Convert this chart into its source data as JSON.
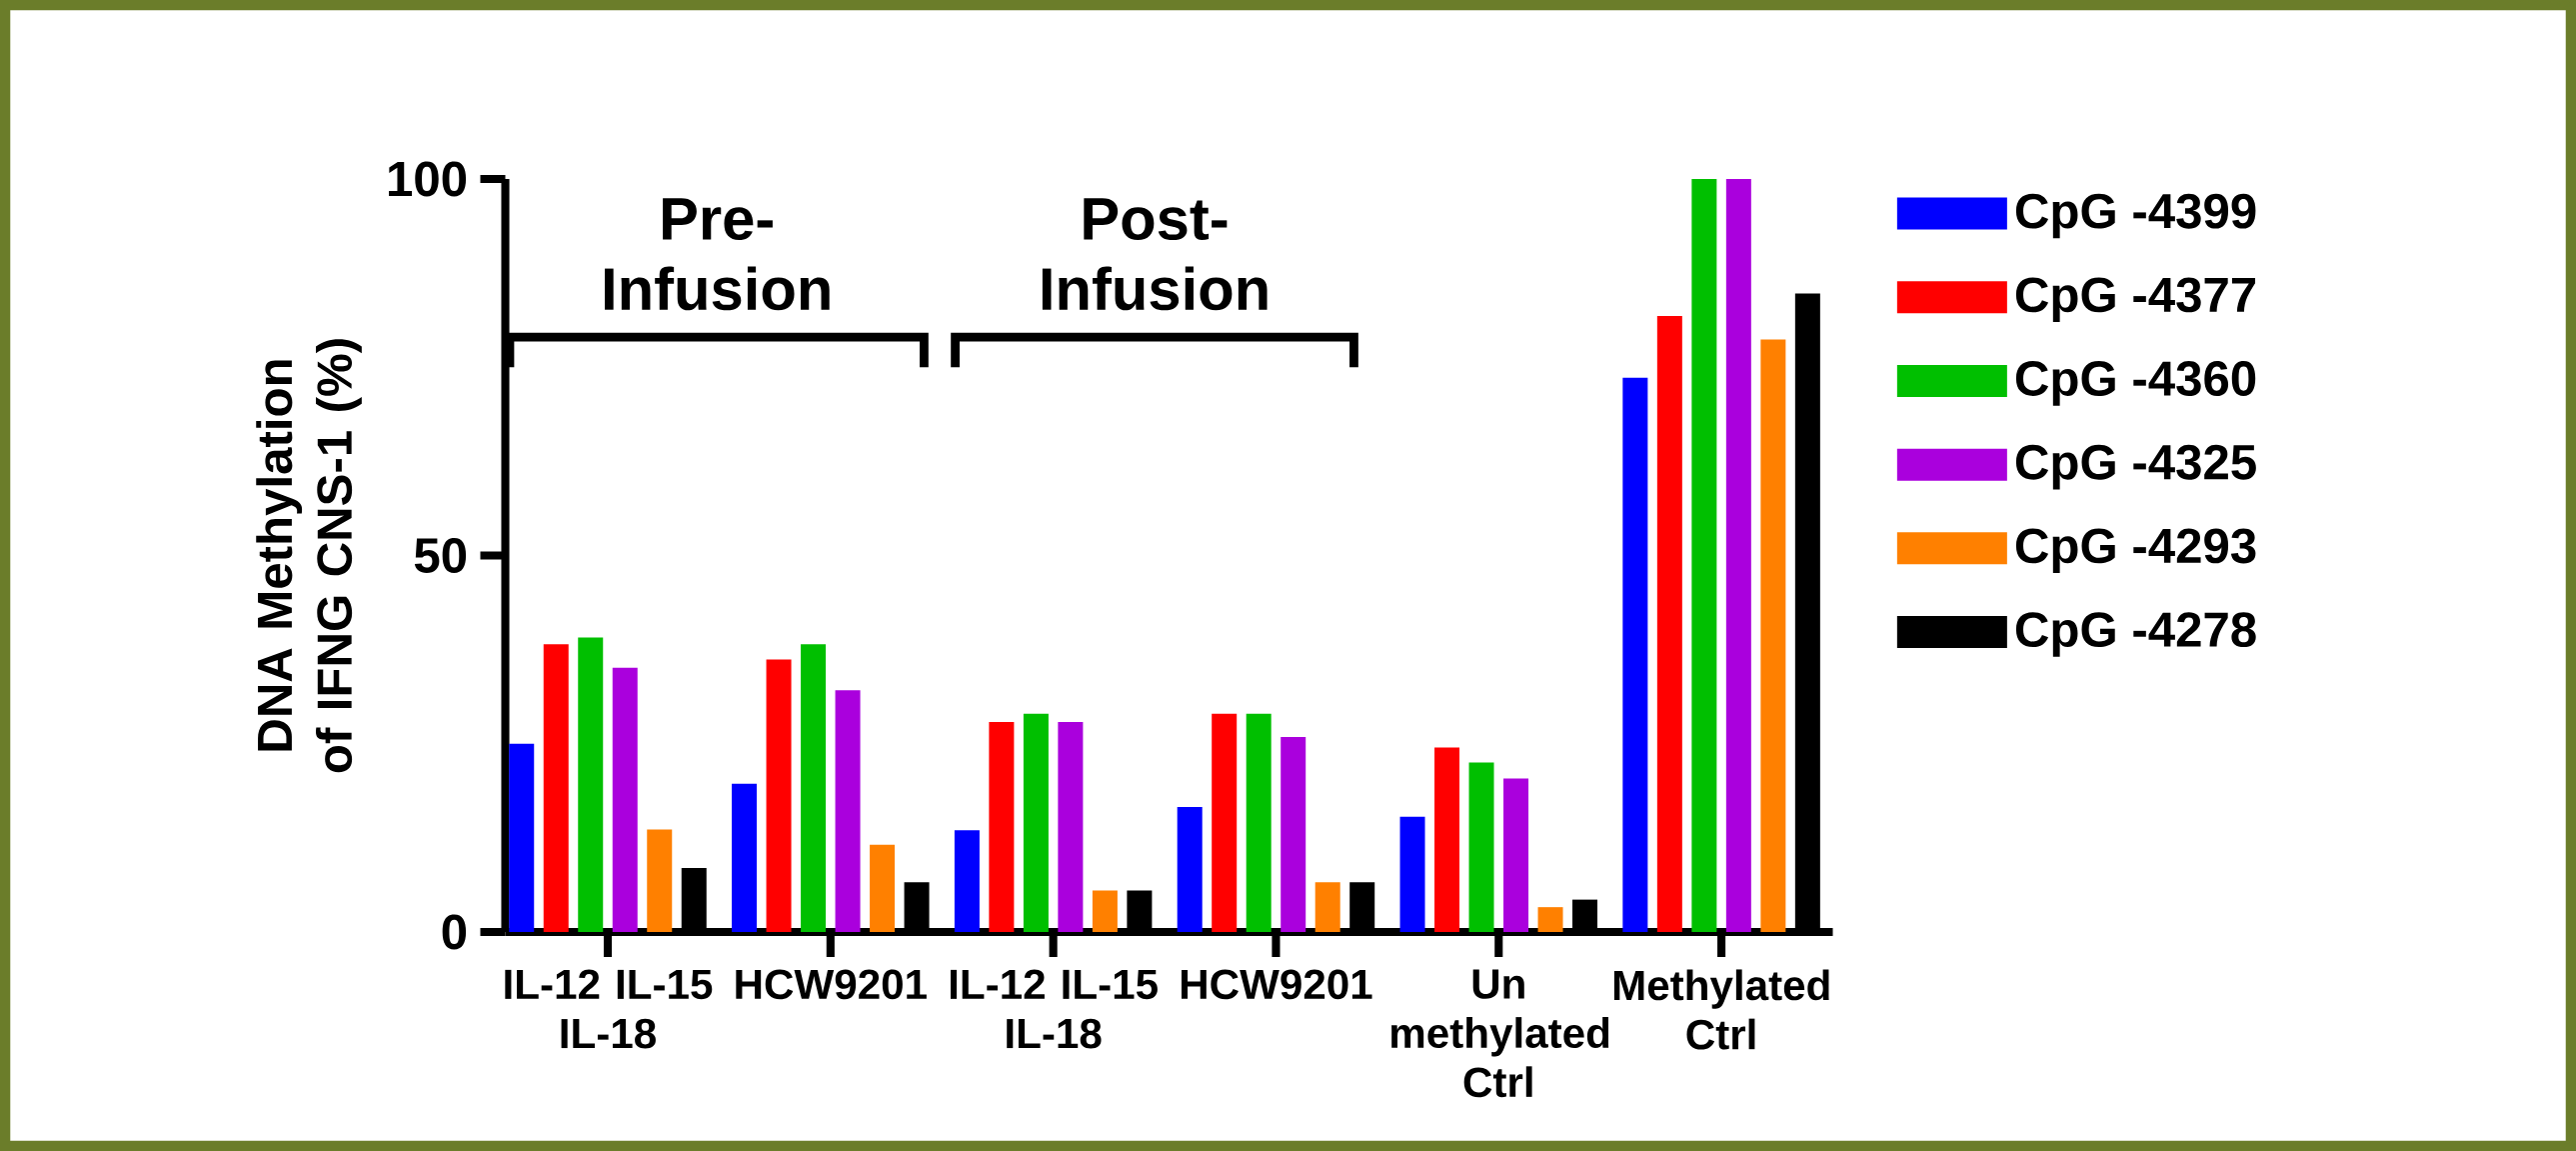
{
  "chart_data": {
    "type": "bar",
    "ylabel": "DNA Methylation of IFNG CNS-1 (%)",
    "categories": [
      "IL-12 IL-15 IL-18",
      "HCW9201",
      "IL-12 IL-15 IL-18",
      "HCW9201",
      "Un methylated Ctrl",
      "Methylated Ctrl"
    ],
    "series": [
      {
        "name": "CpG -4399",
        "color": "#0000ff",
        "values": [
          25,
          19.7,
          13.5,
          16.6,
          15.3,
          73.6
        ]
      },
      {
        "name": "CpG -4377",
        "color": "#ff0000",
        "values": [
          38.2,
          36.2,
          27.9,
          29,
          24.5,
          81.8
        ]
      },
      {
        "name": "CpG -4360",
        "color": "#00bf00",
        "values": [
          39.1,
          38.2,
          29,
          29,
          22.5,
          100
        ]
      },
      {
        "name": "CpG -4325",
        "color": "#aa00dd",
        "values": [
          35.1,
          32.1,
          27.9,
          25.9,
          20.4,
          100
        ]
      },
      {
        "name": "CpG -4293",
        "color": "#ff8000",
        "values": [
          13.6,
          11.6,
          5.5,
          6.6,
          3.3,
          78.7
        ]
      },
      {
        "name": "CpG -4278",
        "color": "#000000",
        "values": [
          8.5,
          6.6,
          5.5,
          6.6,
          4.3,
          84.8
        ]
      }
    ],
    "ylim": [
      0,
      100
    ],
    "yticks": [
      0,
      50,
      100
    ],
    "grid": false,
    "legend": "right",
    "annotations": [
      "Pre- Infusion",
      "Post- Infusion"
    ]
  }
}
